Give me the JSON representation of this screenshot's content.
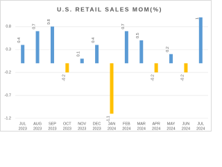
{
  "chart_data": {
    "type": "bar",
    "title": "U.S. RETAIL SALES MOM(%)",
    "categories": [
      [
        "JUL",
        "2023"
      ],
      [
        "AUG",
        "2023"
      ],
      [
        "SEP",
        "2023"
      ],
      [
        "OCT",
        "2023"
      ],
      [
        "NOV",
        "2023"
      ],
      [
        "DEC",
        "2023"
      ],
      [
        "JAN",
        "2024"
      ],
      [
        "FEB",
        "2024"
      ],
      [
        "MAR",
        "2024"
      ],
      [
        "APR",
        "2024"
      ],
      [
        "MAY",
        "2024"
      ],
      [
        "JUN",
        "2024"
      ],
      [
        "JUL",
        "2024"
      ]
    ],
    "values": [
      0.4,
      0.7,
      0.8,
      -0.2,
      0.1,
      0.4,
      -1.1,
      0.7,
      0.5,
      -0.2,
      0.2,
      -0.2,
      1
    ],
    "positive_color": "#5b9bd5",
    "negative_color": "#ffc000",
    "ylim": [
      -1.2,
      1.0
    ],
    "yticks": [
      -1.2,
      -0.7,
      -0.2,
      0.3,
      0.8
    ],
    "grid": true
  }
}
